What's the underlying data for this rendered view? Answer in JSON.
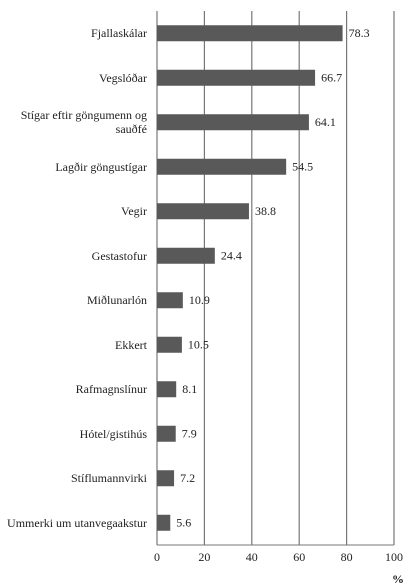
{
  "chart_data": {
    "type": "hbar",
    "categories": [
      "Fjallaskálar",
      "Vegslóðar",
      "Stígar eftir göngumenn og sauðfé",
      "Lagðir göngustígar",
      "Vegir",
      "Gestastofur",
      "Miðlunarlón",
      "Ekkert",
      "Rafmagnslínur",
      "Hótel/gistihús",
      "Stíflumannvirki",
      "Ummerki um utanvegaakstur"
    ],
    "values": [
      78.3,
      66.7,
      64.1,
      54.5,
      38.8,
      24.4,
      10.9,
      10.5,
      8.1,
      7.9,
      7.2,
      5.6
    ],
    "color": "#595959",
    "xlim": [
      0,
      100
    ],
    "xticks": [
      0,
      20,
      40,
      60,
      80,
      100
    ],
    "grid": true,
    "xlabel": "%"
  }
}
